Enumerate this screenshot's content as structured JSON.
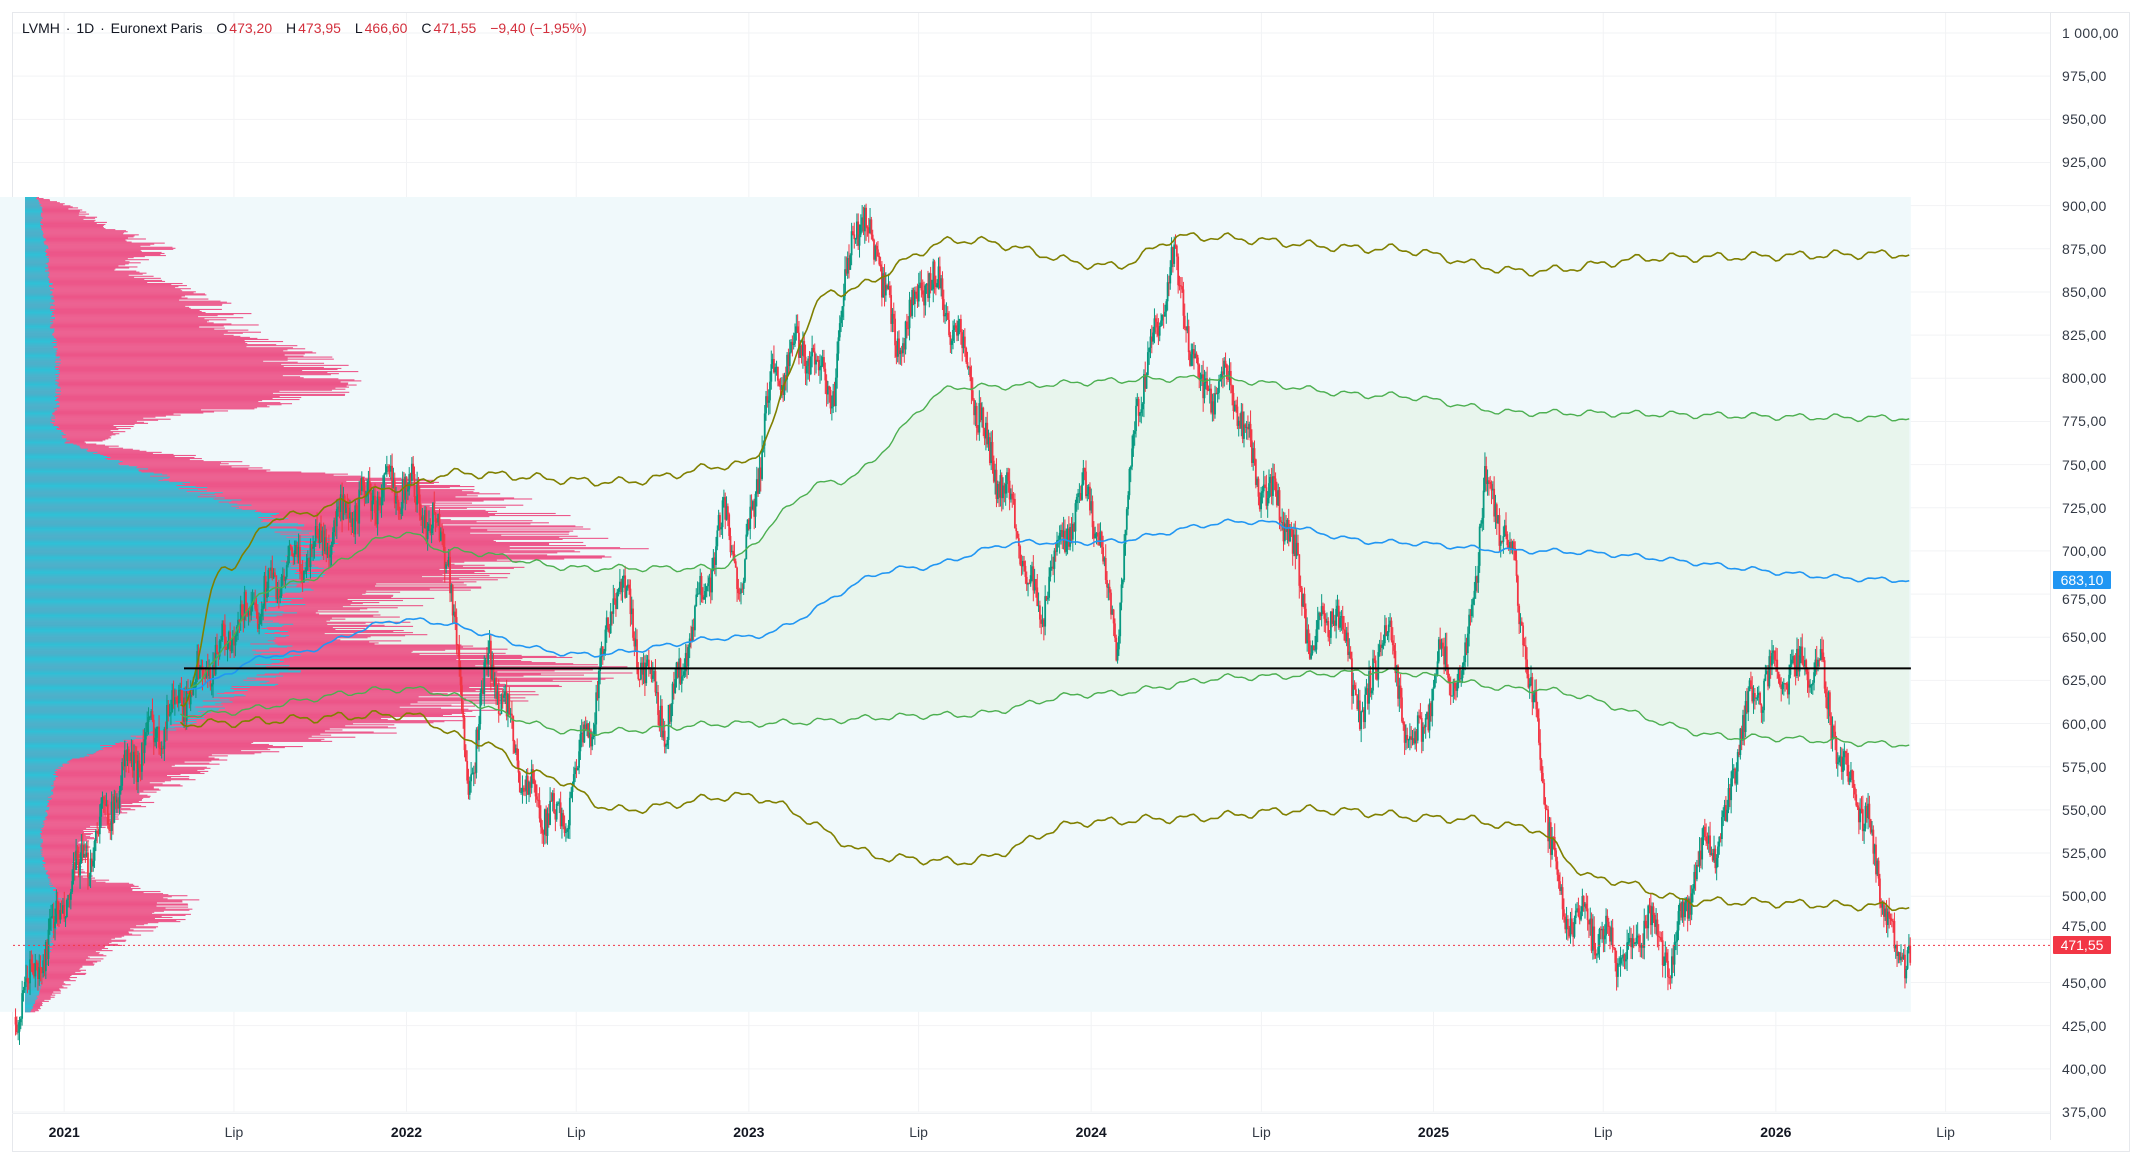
{
  "header": {
    "symbol": "LVMH",
    "interval": "1D",
    "exchange": "Euronext Paris",
    "sep": "·",
    "open_label": "O",
    "open": "473,20",
    "high_label": "H",
    "high": "473,95",
    "low_label": "L",
    "low": "466,60",
    "close_label": "C",
    "close": "471,55",
    "change": "−9,40 (−1,95%)"
  },
  "colors": {
    "up": "#089981",
    "down": "#f23645",
    "profile_total": "#ec407a",
    "profile_up": "#26c6da",
    "band_outer": "#808000",
    "band_inner": "#4caf50",
    "mid_line": "#2196f3",
    "poc_line": "#000000",
    "range_bg": "#f0f9fb",
    "inner_fill": "#e6f4ea",
    "last_price": "#f23645"
  },
  "chart_data": {
    "type": "candlestick",
    "title": "",
    "ylim": [
      362.5,
      1012.5
    ],
    "grid": true,
    "y_ticks": [
      "1 000,00",
      "975,00",
      "950,00",
      "925,00",
      "900,00",
      "875,00",
      "850,00",
      "825,00",
      "800,00",
      "775,00",
      "750,00",
      "725,00",
      "700,00",
      "675,00",
      "650,00",
      "625,00",
      "600,00",
      "575,00",
      "550,00",
      "525,00",
      "500,00",
      "475,00",
      "450,00",
      "425,00",
      "400,00",
      "375,00"
    ],
    "x_ticks": [
      {
        "label": "2021",
        "date": "2021-01-01",
        "year": true
      },
      {
        "label": "Lip",
        "date": "2021-07-01",
        "year": false
      },
      {
        "label": "2022",
        "date": "2022-01-01",
        "year": true
      },
      {
        "label": "Lip",
        "date": "2022-07-01",
        "year": false
      },
      {
        "label": "2023",
        "date": "2023-01-01",
        "year": true
      },
      {
        "label": "Lip",
        "date": "2023-07-01",
        "year": false
      },
      {
        "label": "2024",
        "date": "2024-01-01",
        "year": true
      },
      {
        "label": "Lip",
        "date": "2024-07-01",
        "year": false
      },
      {
        "label": "2025",
        "date": "2025-01-01",
        "year": true
      },
      {
        "label": "Lip",
        "date": "2025-07-01",
        "year": false
      },
      {
        "label": "2026",
        "date": "2026-01-01",
        "year": true
      },
      {
        "label": "Lip",
        "date": "2026-07-01",
        "year": false
      }
    ],
    "price_path": [
      [
        "2020-11-10",
        430
      ],
      [
        "2021-01-05",
        500
      ],
      [
        "2021-03-15",
        580
      ],
      [
        "2021-05-15",
        620
      ],
      [
        "2021-08-10",
        680
      ],
      [
        "2021-11-20",
        730
      ],
      [
        "2022-01-01",
        740
      ],
      [
        "2022-02-15",
        700
      ],
      [
        "2022-03-08",
        560
      ],
      [
        "2022-03-30",
        640
      ],
      [
        "2022-05-10",
        560
      ],
      [
        "2022-06-15",
        540
      ],
      [
        "2022-07-25",
        620
      ],
      [
        "2022-08-15",
        690
      ],
      [
        "2022-09-05",
        640
      ],
      [
        "2022-10-05",
        600
      ],
      [
        "2022-11-05",
        660
      ],
      [
        "2022-12-05",
        720
      ],
      [
        "2022-12-25",
        680
      ],
      [
        "2023-01-25",
        800
      ],
      [
        "2023-03-01",
        820
      ],
      [
        "2023-04-01",
        790
      ],
      [
        "2023-04-22",
        890
      ],
      [
        "2023-05-15",
        880
      ],
      [
        "2023-06-06",
        820
      ],
      [
        "2023-07-15",
        860
      ],
      [
        "2023-08-15",
        820
      ],
      [
        "2023-09-12",
        760
      ],
      [
        "2023-10-12",
        720
      ],
      [
        "2023-11-05",
        660
      ],
      [
        "2023-11-28",
        700
      ],
      [
        "2023-12-28",
        740
      ],
      [
        "2024-01-28",
        650
      ],
      [
        "2024-02-20",
        790
      ],
      [
        "2024-03-15",
        830
      ],
      [
        "2024-03-28",
        870
      ],
      [
        "2024-04-28",
        790
      ],
      [
        "2024-05-28",
        800
      ],
      [
        "2024-06-28",
        740
      ],
      [
        "2024-07-28",
        720
      ],
      [
        "2024-08-25",
        640
      ],
      [
        "2024-09-18",
        670
      ],
      [
        "2024-10-18",
        600
      ],
      [
        "2024-11-10",
        660
      ],
      [
        "2024-12-10",
        580
      ],
      [
        "2025-01-10",
        640
      ],
      [
        "2025-02-01",
        620
      ],
      [
        "2025-02-25",
        740
      ],
      [
        "2025-03-25",
        700
      ],
      [
        "2025-04-25",
        580
      ],
      [
        "2025-05-18",
        490
      ],
      [
        "2025-06-25",
        480
      ],
      [
        "2025-07-25",
        460
      ],
      [
        "2025-08-18",
        490
      ],
      [
        "2025-09-10",
        460
      ],
      [
        "2025-10-10",
        520
      ],
      [
        "2025-11-08",
        540
      ],
      [
        "2025-11-25",
        600
      ],
      [
        "2025-12-25",
        630
      ],
      [
        "2026-01-25",
        630
      ],
      [
        "2026-02-15",
        640
      ],
      [
        "2026-03-10",
        580
      ],
      [
        "2026-04-10",
        540
      ],
      [
        "2026-04-25",
        500
      ],
      [
        "2026-05-10",
        460
      ],
      [
        "2026-05-25",
        471.55
      ]
    ],
    "last_price": {
      "value": 471.55,
      "label": "471,55"
    },
    "mid_value": {
      "value": 683.1,
      "label": "683,10"
    },
    "poc_price": 632,
    "range": {
      "from": "2020-10-20",
      "to": "2026-05-25",
      "high": 905,
      "low": 433
    },
    "bands": {
      "outer_upper": [
        [
          "2021-05-05",
          610
        ],
        [
          "2021-06-20",
          690
        ],
        [
          "2021-08-20",
          720
        ],
        [
          "2022-01-01",
          737
        ],
        [
          "2022-02-15",
          745
        ],
        [
          "2022-08-15",
          740
        ],
        [
          "2022-12-25",
          750
        ],
        [
          "2023-04-01",
          850
        ],
        [
          "2023-08-15",
          880
        ],
        [
          "2024-01-25",
          865
        ],
        [
          "2024-04-10",
          882
        ],
        [
          "2024-11-10",
          875
        ],
        [
          "2025-04-10",
          862
        ],
        [
          "2025-09-10",
          870
        ],
        [
          "2026-05-25",
          872
        ]
      ],
      "inner_upper": [
        [
          "2021-05-05",
          620
        ],
        [
          "2021-08-20",
          680
        ],
        [
          "2022-01-01",
          710
        ],
        [
          "2022-02-15",
          700
        ],
        [
          "2022-07-10",
          690
        ],
        [
          "2022-11-20",
          690
        ],
        [
          "2023-04-01",
          740
        ],
        [
          "2023-08-15",
          795
        ],
        [
          "2024-04-25",
          800
        ],
        [
          "2024-11-10",
          790
        ],
        [
          "2025-04-10",
          780
        ],
        [
          "2026-05-25",
          777
        ]
      ],
      "mid": [
        [
          "2021-05-05",
          620
        ],
        [
          "2021-08-20",
          640
        ],
        [
          "2022-01-01",
          660
        ],
        [
          "2022-07-10",
          640
        ],
        [
          "2022-12-25",
          650
        ],
        [
          "2023-06-20",
          690
        ],
        [
          "2023-10-25",
          705
        ],
        [
          "2024-01-01",
          705
        ],
        [
          "2024-06-15",
          717
        ],
        [
          "2024-11-10",
          705
        ],
        [
          "2025-04-10",
          700
        ],
        [
          "2026-05-25",
          683.1
        ]
      ],
      "inner_lower": [
        [
          "2021-05-05",
          605
        ],
        [
          "2022-01-01",
          620
        ],
        [
          "2022-07-10",
          595
        ],
        [
          "2022-12-25",
          600
        ],
        [
          "2023-08-15",
          605
        ],
        [
          "2024-01-01",
          617
        ],
        [
          "2024-06-15",
          627
        ],
        [
          "2024-11-10",
          630
        ],
        [
          "2025-04-10",
          620
        ],
        [
          "2025-11-25",
          592
        ],
        [
          "2026-05-25",
          588
        ]
      ],
      "outer_lower": [
        [
          "2021-05-05",
          600
        ],
        [
          "2022-01-01",
          605
        ],
        [
          "2022-03-15",
          590
        ],
        [
          "2022-05-25",
          570
        ],
        [
          "2022-08-15",
          550
        ],
        [
          "2022-12-25",
          558
        ],
        [
          "2023-06-06",
          522
        ],
        [
          "2023-08-15",
          520
        ],
        [
          "2024-01-01",
          543
        ],
        [
          "2024-03-28",
          545
        ],
        [
          "2024-08-25",
          550
        ],
        [
          "2025-01-20",
          545
        ],
        [
          "2025-04-10",
          540
        ],
        [
          "2025-06-25",
          510
        ],
        [
          "2025-10-10",
          497
        ],
        [
          "2026-05-25",
          494
        ]
      ]
    },
    "volume_profile": {
      "prices": [
        905,
        900,
        887.5,
        875,
        862.5,
        850,
        837.5,
        825,
        812.5,
        800,
        787.5,
        775,
        762.5,
        750,
        737.5,
        725,
        712.5,
        700,
        687.5,
        675,
        662.5,
        650,
        637.5,
        630,
        620,
        612.5,
        600,
        587.5,
        575,
        562.5,
        550,
        537.5,
        525,
        512.5,
        500,
        487.5,
        475,
        462.5,
        450,
        440,
        433
      ],
      "total": [
        3,
        8,
        15,
        25,
        18,
        30,
        36,
        38,
        50,
        55,
        50,
        20,
        12,
        40,
        75,
        85,
        90,
        100,
        80,
        70,
        60,
        65,
        90,
        100,
        85,
        80,
        70,
        45,
        30,
        25,
        18,
        12,
        10,
        10,
        28,
        26,
        18,
        12,
        8,
        4,
        2
      ],
      "up": [
        2,
        3,
        3,
        4,
        4,
        5,
        5,
        5,
        6,
        6,
        6,
        5,
        8,
        19,
        30,
        40,
        50,
        53,
        50,
        48,
        45,
        45,
        46,
        47,
        40,
        35,
        29,
        15,
        6,
        5,
        4,
        3,
        3,
        4,
        6,
        6,
        5,
        4,
        3,
        2,
        1
      ]
    }
  }
}
